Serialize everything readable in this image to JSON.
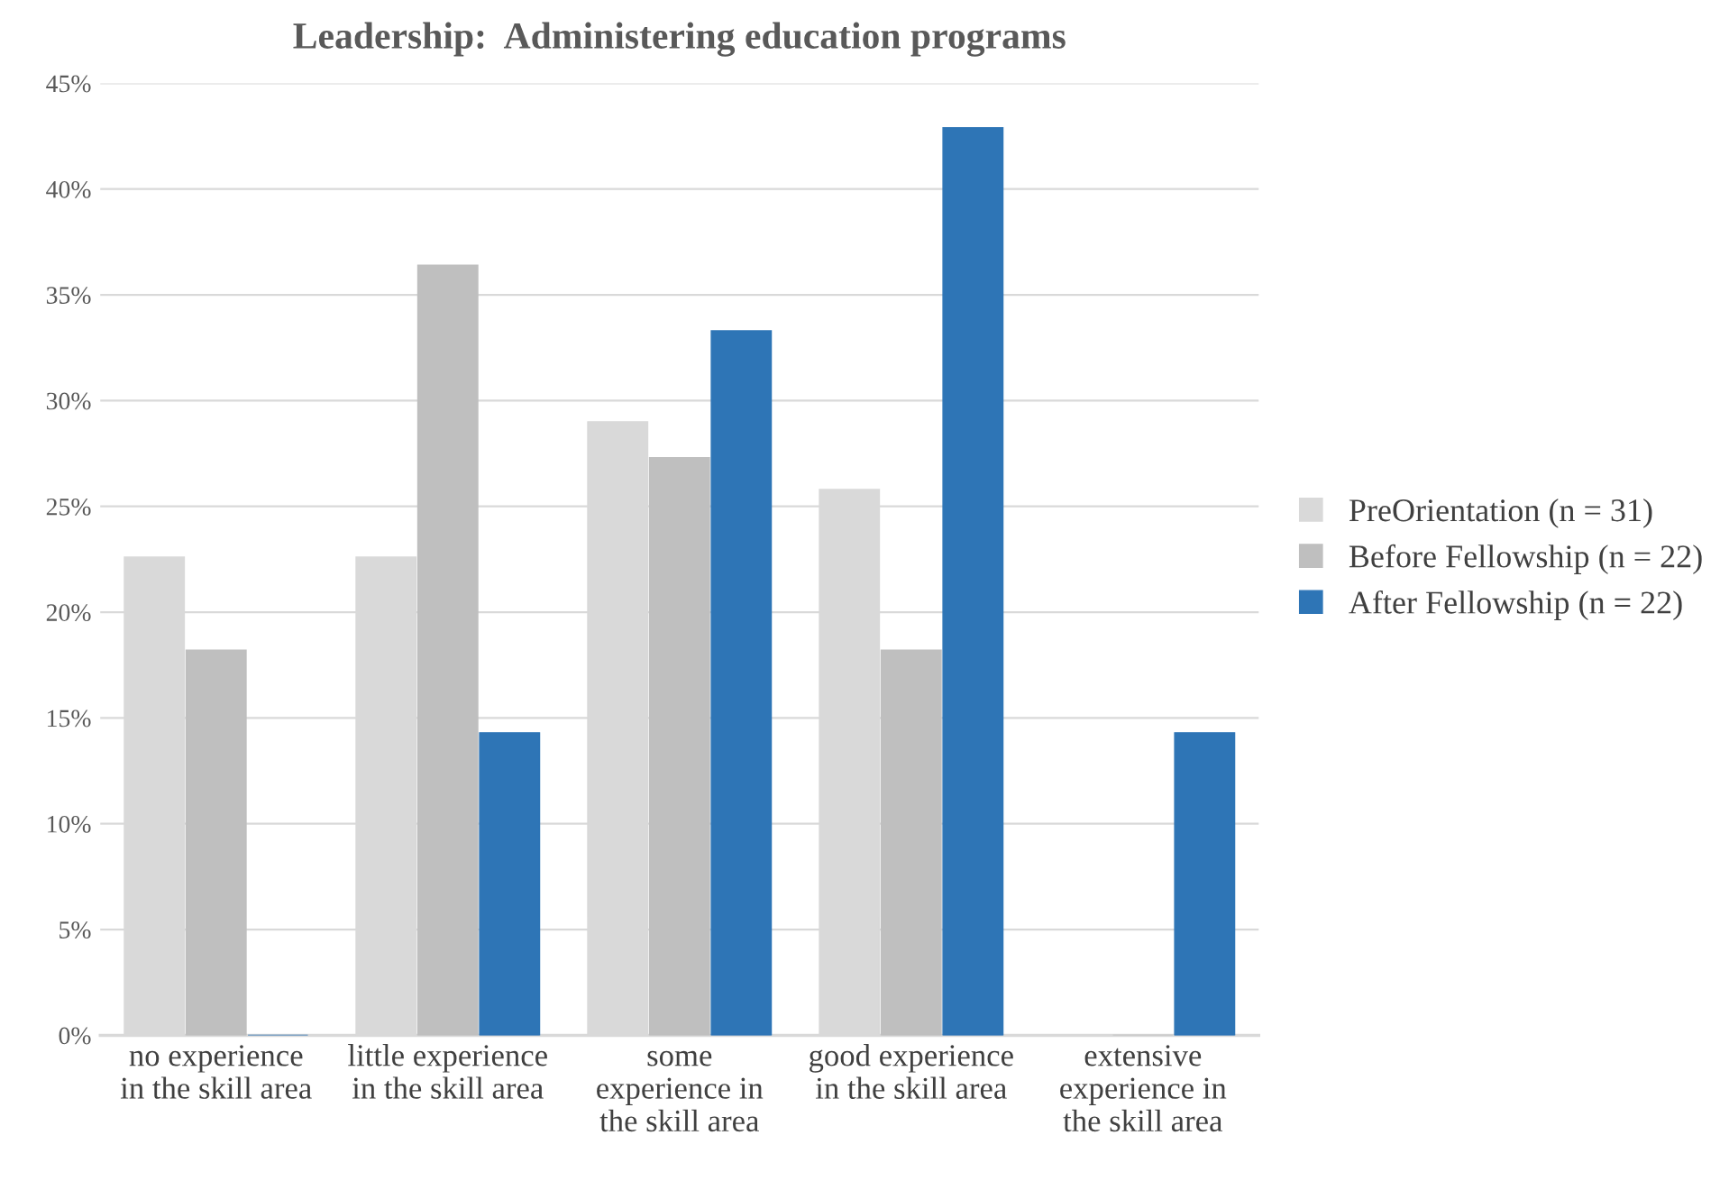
{
  "chart_data": {
    "type": "bar",
    "title": "Leadership:  Administering education programs",
    "categories": [
      "no experience\nin the skill area",
      "little experience\nin the skill area",
      "some\nexperience in\nthe skill area",
      "good experience\nin the skill area",
      "extensive\nexperience in\nthe skill area"
    ],
    "series": [
      {
        "name": "PreOrientation (n = 31)",
        "color": "#d9d9d9",
        "values": [
          22.6,
          22.6,
          29.0,
          25.8,
          0
        ]
      },
      {
        "name": "Before Fellowship (n = 22)",
        "color": "#bfbfbf",
        "values": [
          18.2,
          36.4,
          27.3,
          18.2,
          0
        ]
      },
      {
        "name": "After Fellowship (n = 22)",
        "color": "#2e75b6",
        "values": [
          0,
          14.3,
          33.3,
          42.9,
          14.3
        ]
      }
    ],
    "ylim": [
      0,
      45
    ],
    "yticks": [
      {
        "value": 0,
        "label": "0%"
      },
      {
        "value": 5,
        "label": "5%"
      },
      {
        "value": 10,
        "label": "10%"
      },
      {
        "value": 15,
        "label": "15%"
      },
      {
        "value": 20,
        "label": "20%"
      },
      {
        "value": 25,
        "label": "25%"
      },
      {
        "value": 30,
        "label": "30%"
      },
      {
        "value": 35,
        "label": "35%"
      },
      {
        "value": 40,
        "label": "40%"
      },
      {
        "value": 45,
        "label": "45%"
      }
    ],
    "grid": "y",
    "legend": "right"
  }
}
